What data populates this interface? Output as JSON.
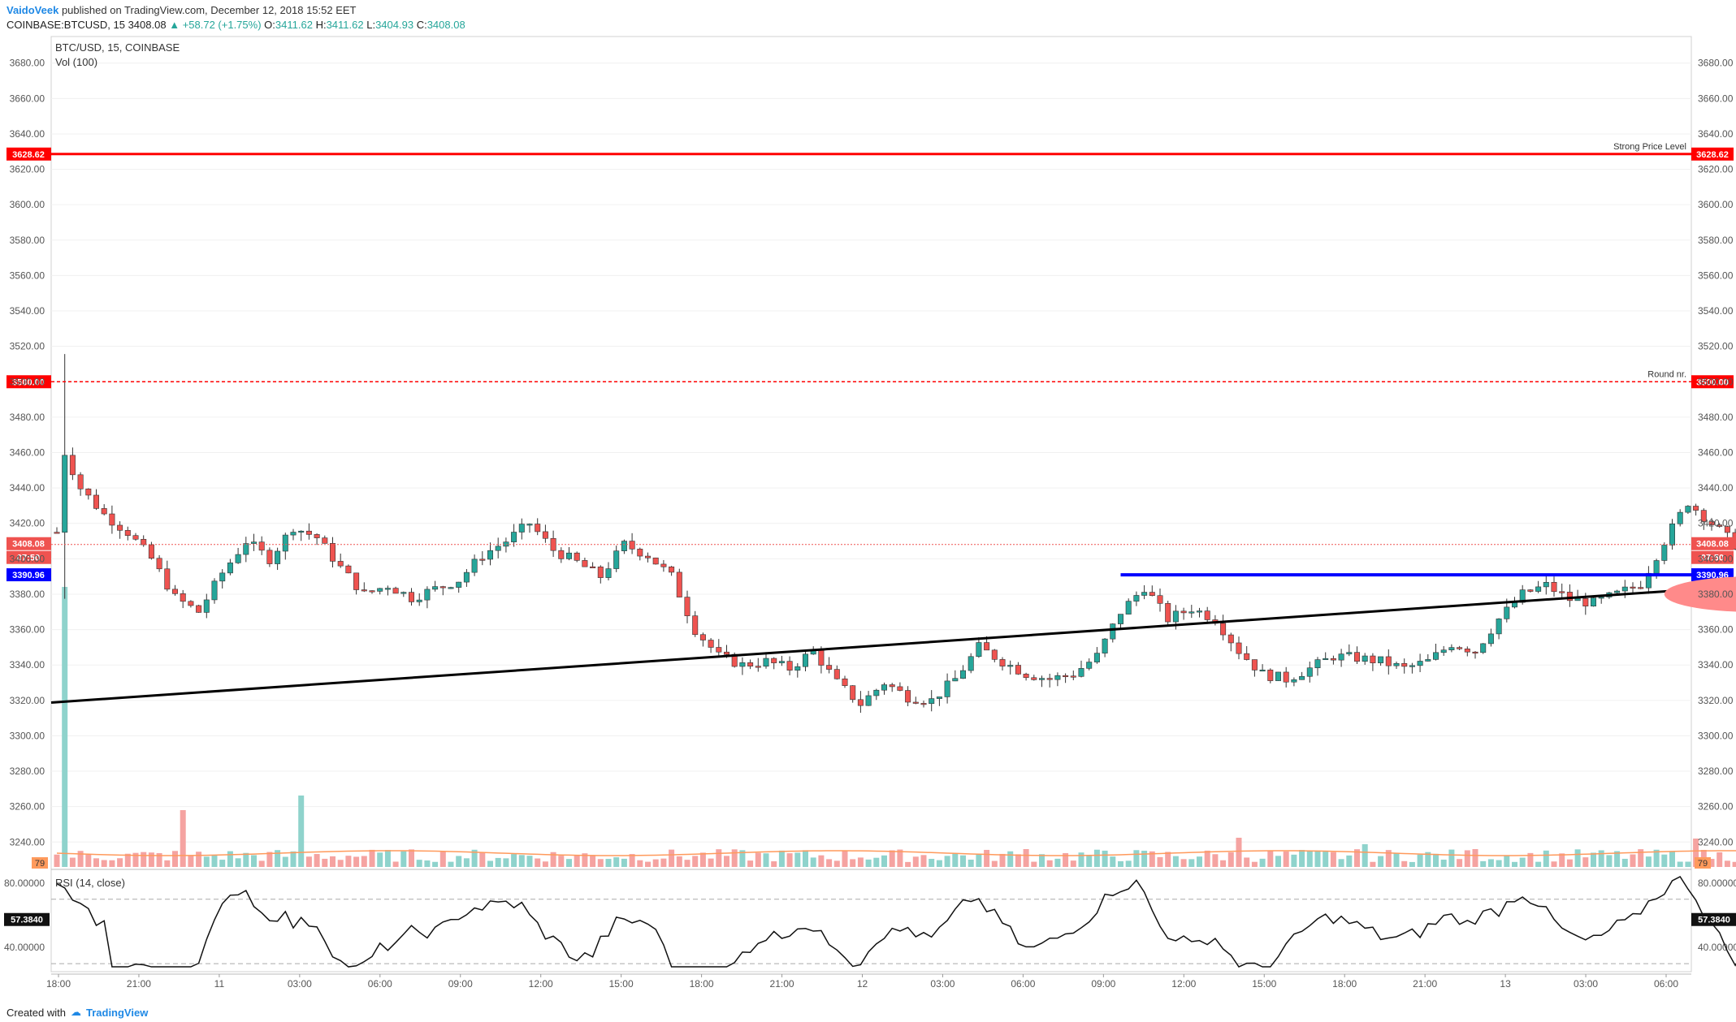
{
  "header": {
    "author": "VaidoVeek",
    "published": "published on TradingView.com, December 12, 2018 15:52 EET",
    "symbol_line": "COINBASE:BTCUSD, 15",
    "last": "3408.08",
    "change": "+58.72 (+1.75%)",
    "o_label": "O:",
    "o": "3411.62",
    "h_label": "H:",
    "h": "3411.62",
    "l_label": "L:",
    "l": "3404.93",
    "c_label": "C:",
    "c": "3408.08"
  },
  "legend": {
    "title": "BTC/USD, 15, COINBASE",
    "volume": "Vol (100)",
    "rsi": "RSI (14, close)"
  },
  "footer": {
    "created_with": "Created with",
    "brand": "TradingView"
  },
  "colors": {
    "up": "#26a69a",
    "down": "#ef5350",
    "level": "#ff0000",
    "support": "#0000ff",
    "trend": "#000000",
    "target_ellipse": "#ff8a8a"
  },
  "chart_data": {
    "type": "candlestick",
    "symbol": "BTC/USD",
    "interval": "15",
    "exchange": "COINBASE",
    "ylim": [
      3225,
      3695
    ],
    "y_ticks": [
      3240,
      3260,
      3280,
      3300,
      3320,
      3340,
      3360,
      3380,
      3400,
      3420,
      3440,
      3460,
      3480,
      3500,
      3520,
      3540,
      3560,
      3580,
      3600,
      3620,
      3640,
      3660,
      3680
    ],
    "x_ticks": [
      "18:00",
      "21:00",
      "11",
      "03:00",
      "06:00",
      "09:00",
      "12:00",
      "15:00",
      "18:00",
      "21:00",
      "12",
      "03:00",
      "06:00",
      "09:00",
      "12:00",
      "15:00",
      "18:00",
      "21:00",
      "13",
      "03:00",
      "06:00"
    ],
    "price_path": [
      [
        0,
        3415
      ],
      [
        1,
        3460
      ],
      [
        3,
        3440
      ],
      [
        6,
        3425
      ],
      [
        9,
        3415
      ],
      [
        12,
        3400
      ],
      [
        15,
        3378
      ],
      [
        18,
        3370
      ],
      [
        21,
        3392
      ],
      [
        24,
        3410
      ],
      [
        27,
        3400
      ],
      [
        30,
        3418
      ],
      [
        33,
        3412
      ],
      [
        36,
        3395
      ],
      [
        39,
        3380
      ],
      [
        42,
        3385
      ],
      [
        45,
        3378
      ],
      [
        48,
        3383
      ],
      [
        51,
        3388
      ],
      [
        54,
        3402
      ],
      [
        57,
        3410
      ],
      [
        60,
        3420
      ],
      [
        63,
        3405
      ],
      [
        66,
        3398
      ],
      [
        69,
        3390
      ],
      [
        72,
        3408
      ],
      [
        75,
        3402
      ],
      [
        78,
        3390
      ],
      [
        81,
        3360
      ],
      [
        84,
        3345
      ],
      [
        87,
        3340
      ],
      [
        90,
        3342
      ],
      [
        93,
        3338
      ],
      [
        96,
        3348
      ],
      [
        99,
        3330
      ],
      [
        102,
        3318
      ],
      [
        105,
        3330
      ],
      [
        108,
        3322
      ],
      [
        111,
        3320
      ],
      [
        114,
        3332
      ],
      [
        117,
        3350
      ],
      [
        120,
        3342
      ],
      [
        123,
        3335
      ],
      [
        126,
        3332
      ],
      [
        129,
        3335
      ],
      [
        132,
        3345
      ],
      [
        135,
        3370
      ],
      [
        138,
        3384
      ],
      [
        141,
        3366
      ],
      [
        144,
        3372
      ],
      [
        147,
        3366
      ],
      [
        150,
        3348
      ],
      [
        153,
        3335
      ],
      [
        156,
        3332
      ],
      [
        159,
        3338
      ],
      [
        162,
        3345
      ],
      [
        165,
        3344
      ],
      [
        168,
        3342
      ],
      [
        171,
        3338
      ],
      [
        174,
        3342
      ],
      [
        177,
        3352
      ],
      [
        180,
        3348
      ],
      [
        183,
        3366
      ],
      [
        186,
        3380
      ],
      [
        189,
        3385
      ],
      [
        192,
        3377
      ],
      [
        195,
        3375
      ],
      [
        198,
        3380
      ],
      [
        201,
        3386
      ],
      [
        204,
        3410
      ],
      [
        207,
        3432
      ],
      [
        210,
        3420
      ],
      [
        213,
        3408
      ],
      [
        216,
        3406
      ],
      [
        219,
        3398
      ],
      [
        221,
        3408
      ]
    ],
    "volume_spikes": [
      [
        1,
        345
      ],
      [
        31,
        88
      ],
      [
        16,
        70
      ],
      [
        215,
        52
      ],
      [
        208,
        35
      ],
      [
        166,
        28
      ],
      [
        150,
        36
      ],
      [
        123,
        22
      ],
      [
        180,
        22
      ]
    ],
    "levels": [
      {
        "label": "Strong Price Level",
        "price": 3628.62,
        "price_text": "3628.62",
        "style": "solid"
      },
      {
        "label": "Round nr.",
        "price": 3500.0,
        "price_text": "3500.00",
        "style": "dashed"
      }
    ],
    "support": {
      "price": 3390.96,
      "price_text": "3390.96",
      "from_bar": 135
    },
    "trendline": {
      "from": [
        0,
        3319
      ],
      "to": [
        300,
        3411
      ]
    },
    "current_price": {
      "price": 3408.08,
      "price_text": "3408.08",
      "countdown": "07:50"
    },
    "volume_tag": "79",
    "target_arrow": {
      "from": [
        214,
        3418
      ],
      "to": [
        224,
        3497
      ]
    },
    "target_zone": {
      "center": [
        215,
        3380
      ],
      "price_halfheight": 10,
      "bar_halfwidth": 11
    },
    "rsi": {
      "ylim": [
        25,
        88
      ],
      "y_ticks": [
        40,
        80
      ],
      "current_text": "57.3840",
      "overbought": 70,
      "oversold": 30
    }
  }
}
